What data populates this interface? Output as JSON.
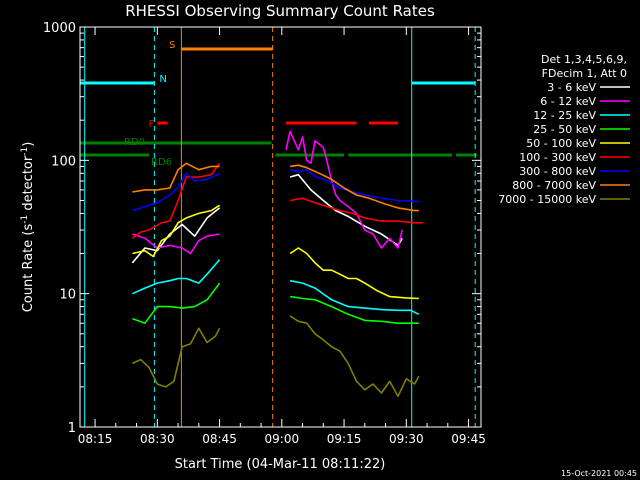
{
  "chart_data": {
    "type": "line",
    "title": "RHESSI Observing Summary Count Rates",
    "xlabel": "Start Time (04-Mar-11 08:11:22)",
    "ylabel_parts": [
      "Count Rate (s",
      "-1",
      " detector",
      "-1",
      ")"
    ],
    "ylabel": "Count Rate (s^-1 detector^-1)",
    "y_scale": "log",
    "ylim": [
      1,
      1000
    ],
    "xlim_minutes": [
      11.37,
      108
    ],
    "x_ticks": [
      {
        "minute": 15,
        "label": "08:15"
      },
      {
        "minute": 30,
        "label": "08:30"
      },
      {
        "minute": 45,
        "label": "08:45"
      },
      {
        "minute": 60,
        "label": "09:00"
      },
      {
        "minute": 75,
        "label": "09:15"
      },
      {
        "minute": 90,
        "label": "09:30"
      },
      {
        "minute": 105,
        "label": "09:45"
      }
    ],
    "y_ticks": [
      {
        "value": 1,
        "label": "1"
      },
      {
        "value": 10,
        "label": "10"
      },
      {
        "value": 100,
        "label": "100"
      },
      {
        "value": 1000,
        "label": "1000"
      }
    ],
    "legend_header": [
      "Det 1,3,4,5,6,9,",
      "FDecim 1, Att 0"
    ],
    "legend_placement": "right",
    "footer_date": "15-Oct-2021 00:45",
    "series": [
      {
        "name": "3 - 6 keV",
        "color": "#ffffff",
        "segments": [
          [
            [
              24,
              17
            ],
            [
              27,
              22
            ],
            [
              30,
              21
            ],
            [
              33,
              28
            ],
            [
              36,
              33
            ],
            [
              39,
              27
            ],
            [
              42,
              37
            ],
            [
              45,
              44
            ]
          ],
          [
            [
              62,
              75
            ],
            [
              64,
              78
            ],
            [
              67,
              60
            ],
            [
              70,
              50
            ],
            [
              73,
              42
            ],
            [
              76,
              38
            ],
            [
              80,
              32
            ],
            [
              84,
              28
            ],
            [
              88,
              23
            ],
            [
              89,
              26
            ]
          ]
        ]
      },
      {
        "name": "6 - 12 keV",
        "color": "#ff00ff",
        "segments": [
          [
            [
              24,
              28
            ],
            [
              27,
              26
            ],
            [
              30,
              22
            ],
            [
              33,
              23
            ],
            [
              36,
              22
            ],
            [
              38,
              20
            ],
            [
              40,
              25
            ],
            [
              42,
              27
            ],
            [
              45,
              28
            ]
          ],
          [
            [
              61,
              120
            ],
            [
              62,
              165
            ],
            [
              63,
              140
            ],
            [
              64,
              120
            ],
            [
              65,
              150
            ],
            [
              66,
              100
            ],
            [
              67,
              95
            ],
            [
              68,
              140
            ],
            [
              70,
              125
            ],
            [
              71,
              95
            ],
            [
              72,
              70
            ],
            [
              73,
              55
            ],
            [
              74,
              50
            ],
            [
              76,
              45
            ],
            [
              78,
              40
            ],
            [
              80,
              30
            ],
            [
              82,
              28
            ],
            [
              84,
              22
            ],
            [
              86,
              26
            ],
            [
              88,
              22
            ],
            [
              89,
              30
            ]
          ]
        ]
      },
      {
        "name": "12 - 25 keV",
        "color": "#00ffff",
        "segments": [
          [
            [
              24,
              10
            ],
            [
              27,
              11
            ],
            [
              30,
              12
            ],
            [
              33,
              12.5
            ],
            [
              35,
              13
            ],
            [
              37,
              13
            ],
            [
              40,
              12
            ],
            [
              42,
              14
            ],
            [
              45,
              18
            ]
          ],
          [
            [
              62,
              12.5
            ],
            [
              65,
              12
            ],
            [
              68,
              11
            ],
            [
              72,
              9
            ],
            [
              76,
              8
            ],
            [
              80,
              7.8
            ],
            [
              84,
              7.6
            ],
            [
              88,
              7.5
            ],
            [
              91,
              7.5
            ],
            [
              93,
              7
            ]
          ]
        ]
      },
      {
        "name": "25 - 50 keV",
        "color": "#00ff00",
        "segments": [
          [
            [
              24,
              6.5
            ],
            [
              27,
              6
            ],
            [
              30,
              8
            ],
            [
              33,
              8
            ],
            [
              36,
              7.8
            ],
            [
              39,
              8
            ],
            [
              42,
              9
            ],
            [
              45,
              12
            ]
          ],
          [
            [
              62,
              9.5
            ],
            [
              65,
              9.2
            ],
            [
              68,
              9
            ],
            [
              72,
              8
            ],
            [
              76,
              7
            ],
            [
              80,
              6.3
            ],
            [
              84,
              6.2
            ],
            [
              88,
              6
            ],
            [
              93,
              6
            ]
          ]
        ]
      },
      {
        "name": "50 - 100 keV",
        "color": "#ffff00",
        "segments": [
          [
            [
              24,
              20
            ],
            [
              27,
              21
            ],
            [
              29,
              19
            ],
            [
              31,
              25
            ],
            [
              33,
              27
            ],
            [
              35,
              34
            ],
            [
              37,
              37
            ],
            [
              40,
              40
            ],
            [
              43,
              42
            ],
            [
              45,
              46
            ]
          ],
          [
            [
              62,
              20
            ],
            [
              64,
              22
            ],
            [
              66,
              20
            ],
            [
              68,
              17
            ],
            [
              70,
              15
            ],
            [
              72,
              15
            ],
            [
              74,
              14
            ],
            [
              76,
              13
            ],
            [
              78,
              13
            ],
            [
              80,
              12
            ],
            [
              83,
              10.5
            ],
            [
              86,
              9.5
            ],
            [
              90,
              9.3
            ],
            [
              93,
              9.2
            ]
          ]
        ]
      },
      {
        "name": "100 - 300 keV",
        "color": "#ff0000",
        "segments": [
          [
            [
              24,
              26
            ],
            [
              26,
              29
            ],
            [
              28,
              30
            ],
            [
              31,
              34
            ],
            [
              33,
              35
            ],
            [
              35,
              50
            ],
            [
              37,
              75
            ],
            [
              40,
              75
            ],
            [
              43,
              78
            ],
            [
              45,
              95
            ]
          ],
          [
            [
              62,
              50
            ],
            [
              65,
              52
            ],
            [
              68,
              48
            ],
            [
              71,
              45
            ],
            [
              74,
              42
            ],
            [
              77,
              40
            ],
            [
              80,
              37
            ],
            [
              84,
              35
            ],
            [
              88,
              35
            ],
            [
              92,
              34
            ],
            [
              94,
              34
            ]
          ]
        ]
      },
      {
        "name": "300 - 800 keV",
        "color": "#0000ff",
        "segments": [
          [
            [
              24,
              42
            ],
            [
              27,
              45
            ],
            [
              30,
              48
            ],
            [
              33,
              55
            ],
            [
              35,
              63
            ],
            [
              37,
              80
            ],
            [
              39,
              70
            ],
            [
              42,
              72
            ],
            [
              45,
              80
            ]
          ],
          [
            [
              62,
              85
            ],
            [
              64,
              82
            ],
            [
              66,
              85
            ],
            [
              68,
              76
            ],
            [
              71,
              70
            ],
            [
              74,
              62
            ],
            [
              77,
              58
            ],
            [
              80,
              55
            ],
            [
              84,
              52
            ],
            [
              88,
              50
            ],
            [
              93,
              49
            ]
          ]
        ]
      },
      {
        "name": "800 - 7000 keV",
        "color": "#ff7f00",
        "segments": [
          [
            [
              24,
              58
            ],
            [
              27,
              60
            ],
            [
              30,
              60
            ],
            [
              33,
              62
            ],
            [
              35,
              85
            ],
            [
              37,
              95
            ],
            [
              40,
              85
            ],
            [
              43,
              90
            ],
            [
              45,
              90
            ]
          ],
          [
            [
              62,
              90
            ],
            [
              64,
              92
            ],
            [
              66,
              88
            ],
            [
              69,
              80
            ],
            [
              72,
              72
            ],
            [
              75,
              62
            ],
            [
              78,
              55
            ],
            [
              81,
              52
            ],
            [
              85,
              47
            ],
            [
              88,
              44
            ],
            [
              92,
              42
            ],
            [
              93,
              42
            ]
          ]
        ]
      },
      {
        "name": "7000 - 15000 keV",
        "color": "#808000",
        "segments": [
          [
            [
              24,
              3.0
            ],
            [
              26,
              3.2
            ],
            [
              28,
              2.8
            ],
            [
              30,
              2.1
            ],
            [
              32,
              2.0
            ],
            [
              34,
              2.2
            ],
            [
              36,
              4.0
            ],
            [
              38,
              4.2
            ],
            [
              40,
              5.5
            ],
            [
              42,
              4.3
            ],
            [
              44,
              4.8
            ],
            [
              45,
              5.5
            ]
          ],
          [
            [
              62,
              6.8
            ],
            [
              64,
              6.2
            ],
            [
              66,
              6.0
            ],
            [
              68,
              5.0
            ],
            [
              70,
              4.5
            ],
            [
              72,
              4.0
            ],
            [
              74,
              3.7
            ],
            [
              76,
              3.0
            ],
            [
              78,
              2.2
            ],
            [
              80,
              1.9
            ],
            [
              82,
              2.1
            ],
            [
              84,
              1.8
            ],
            [
              86,
              2.2
            ],
            [
              88,
              1.7
            ],
            [
              90,
              2.3
            ],
            [
              92,
              2.1
            ],
            [
              93,
              2.4
            ]
          ]
        ]
      }
    ],
    "vertical_markers": [
      {
        "minute": 12.5,
        "color": "#00ffff",
        "style": "solid"
      },
      {
        "minute": 29.3,
        "color": "#00ffff",
        "style": "dashed"
      },
      {
        "minute": 35.8,
        "color": "#ff7f00",
        "style": "solid"
      },
      {
        "minute": 57.8,
        "color": "#ff7f00",
        "style": "dashed"
      },
      {
        "minute": 91.3,
        "color": "#00ffff",
        "style": "solid"
      },
      {
        "minute": 106.6,
        "color": "#00ffff",
        "style": "dashed"
      }
    ],
    "status_bars": [
      {
        "label": "N",
        "color": "#00ffff",
        "level": 0.86,
        "spans": [
          [
            11.37,
            29.3
          ],
          [
            91.3,
            106.6
          ]
        ]
      },
      {
        "label": "S",
        "color": "#ff7f00",
        "level": 0.945,
        "spans": [
          [
            35.8,
            57.8
          ]
        ]
      },
      {
        "label": "F",
        "color": "#ff0000",
        "level": 0.76,
        "spans": [
          [
            30,
            32.5
          ],
          [
            61,
            78
          ],
          [
            81,
            88
          ]
        ]
      },
      {
        "label": "RD0",
        "color": "#008000",
        "level": 0.71,
        "spans": [
          [
            11.37,
            57.5
          ]
        ]
      },
      {
        "label": "RD6",
        "color": "#008000",
        "level": 0.68,
        "spans": [
          [
            11.37,
            28
          ],
          [
            58.5,
            75
          ],
          [
            76,
            101
          ],
          [
            102,
            107
          ]
        ]
      }
    ]
  }
}
